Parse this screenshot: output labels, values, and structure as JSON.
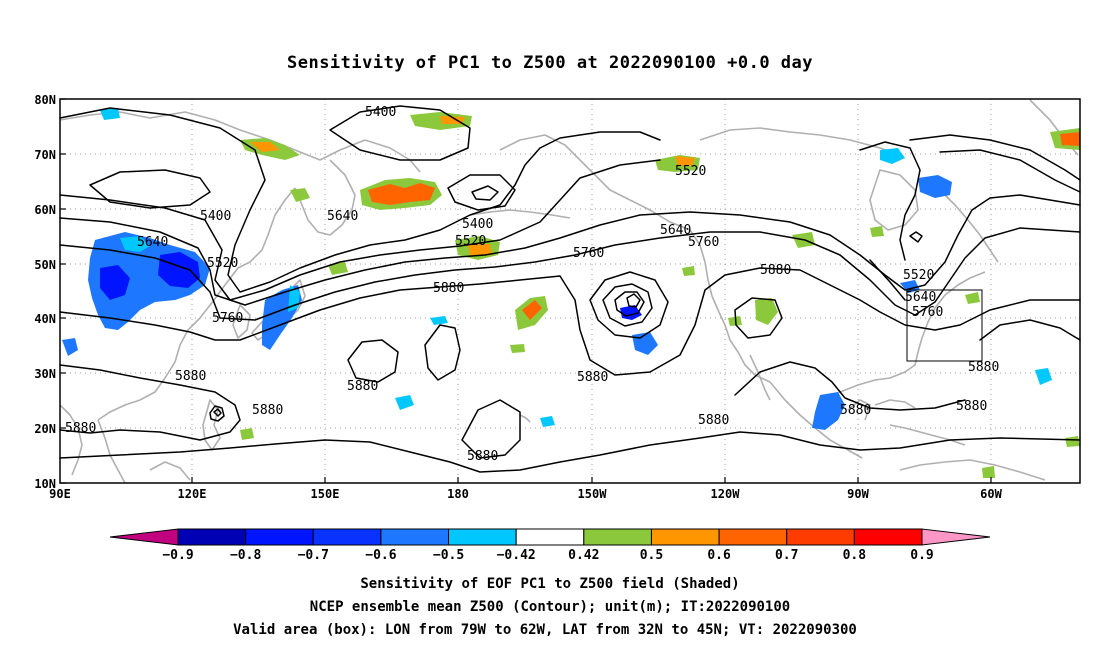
{
  "title": "Sensitivity of PC1 to Z500 at 2022090100 +0.0 day",
  "axes": {
    "lat_labels": [
      "80N",
      "70N",
      "60N",
      "50N",
      "40N",
      "30N",
      "20N",
      "10N"
    ],
    "lon_labels": [
      "90E",
      "120E",
      "150E",
      "180",
      "150W",
      "120W",
      "90W",
      "60W"
    ]
  },
  "contour_labels": {
    "c5400_top": "5400",
    "c5400_west": "5400",
    "c5400_mid": "5400",
    "c5520_a": "5520",
    "c5520_b": "5520",
    "c5520_c": "5520",
    "c5520_d": "5520",
    "c5520_e": "5520",
    "c5640_a": "5640",
    "c5640_b": "5640",
    "c5640_c": "5640",
    "c5640_d": "5640",
    "c5760_a": "5760",
    "c5760_b": "5760",
    "c5760_c": "5760",
    "c5760_d": "5760",
    "c5880_a": "5880",
    "c5880_b": "5880",
    "c5880_c": "5880",
    "c5880_d": "5880",
    "c5880_e": "5880",
    "c5880_f": "5880",
    "c5880_g": "5880",
    "c5880_h": "5880",
    "c5880_i": "5880",
    "c5880_j": "5880",
    "c5880_k": "5880",
    "c5880_l": "5880"
  },
  "colorbar": {
    "labels": [
      "−0.9",
      "−0.8",
      "−0.7",
      "−0.6",
      "−0.5",
      "−0.42",
      "0.42",
      "0.5",
      "0.6",
      "0.7",
      "0.8",
      "0.9"
    ],
    "colors": [
      "#c0007f",
      "#0000b4",
      "#0014ff",
      "#0a32ff",
      "#1e78ff",
      "#00c8ff",
      "#ffffff",
      "#8cc83c",
      "#ff9600",
      "#ff6400",
      "#ff3c00",
      "#ff0000",
      "#ff96c8"
    ]
  },
  "caption": {
    "line1": "Sensitivity of EOF PC1 to Z500 field (Shaded)",
    "line2": "NCEP ensemble mean Z500 (Contour); unit(m); IT:2022090100",
    "line3": "Valid area (box): LON from 79W to 62W, LAT from 32N to 45N; VT: 2022090300"
  },
  "shading_colors": {
    "blue_dark": "#0014ff",
    "blue_mid": "#1e78ff",
    "cyan": "#00c8ff",
    "green": "#8cc83c",
    "orange": "#ff9600",
    "red_orange": "#ff6400"
  },
  "coast_color": "#b0b0b0"
}
